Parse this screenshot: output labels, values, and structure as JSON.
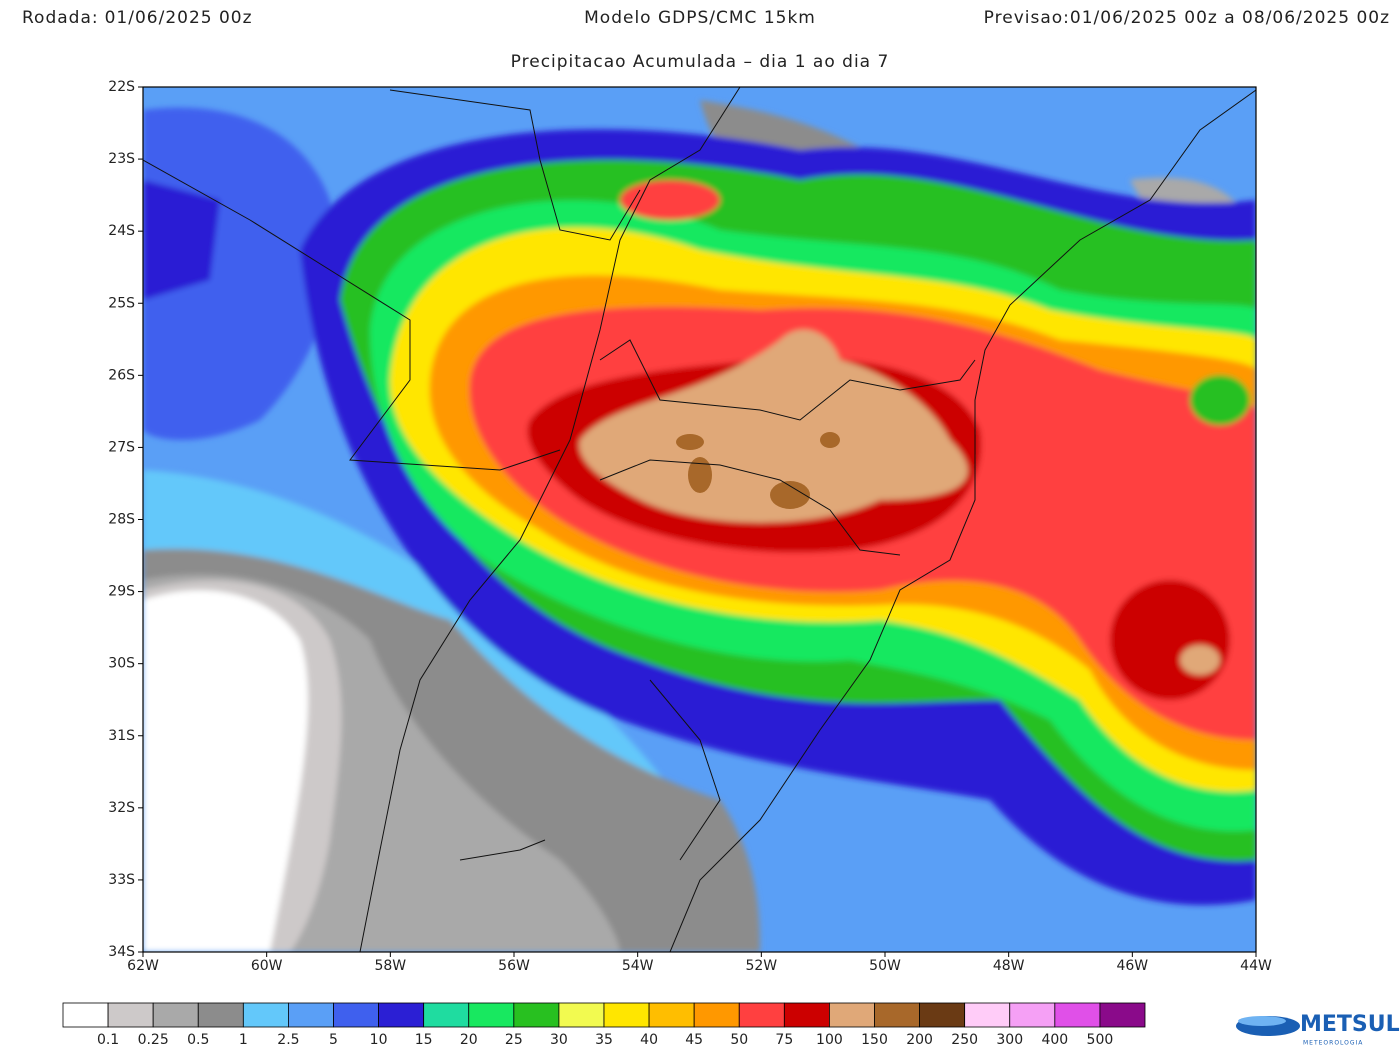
{
  "header": {
    "run_label": "Rodada:",
    "run": "01/06/2025 00z",
    "model": "Modelo GDPS/CMC 15km",
    "forecast_label": "Previsao:",
    "forecast": "01/06/2025 00z a 08/06/2025 00z",
    "subtitle": "Precipitacao Acumulada – dia 1 ao dia 7"
  },
  "map": {
    "lat_labels": [
      "22S",
      "23S",
      "24S",
      "25S",
      "26S",
      "27S",
      "28S",
      "29S",
      "30S",
      "31S",
      "32S",
      "33S",
      "34S"
    ],
    "lon_labels": [
      "62W",
      "60W",
      "58W",
      "56W",
      "54W",
      "52W",
      "50W",
      "48W",
      "46W",
      "44W"
    ]
  },
  "legend": {
    "colors": [
      "#ffffff",
      "#cdc9c9",
      "#a9a9a9",
      "#8c8c8c",
      "#63c8fa",
      "#5a9ff6",
      "#3f60ee",
      "#2b1fd4",
      "#1fdca0",
      "#18e860",
      "#28c020",
      "#f2fa50",
      "#ffe600",
      "#ffbe00",
      "#ff9800",
      "#ff4040",
      "#cc0000",
      "#e0a878",
      "#a8682a",
      "#6a3a14",
      "#ffccf8",
      "#f5a0f5",
      "#e050e8",
      "#8a0a8a"
    ],
    "labels": [
      "0.1",
      "0.25",
      "0.5",
      "1",
      "2.5",
      "5",
      "10",
      "15",
      "20",
      "25",
      "30",
      "35",
      "40",
      "45",
      "50",
      "75",
      "100",
      "150",
      "200",
      "250",
      "300",
      "400",
      "500"
    ]
  },
  "logo": {
    "name": "METSUL",
    "tagline": "METEOROLOGIA"
  }
}
